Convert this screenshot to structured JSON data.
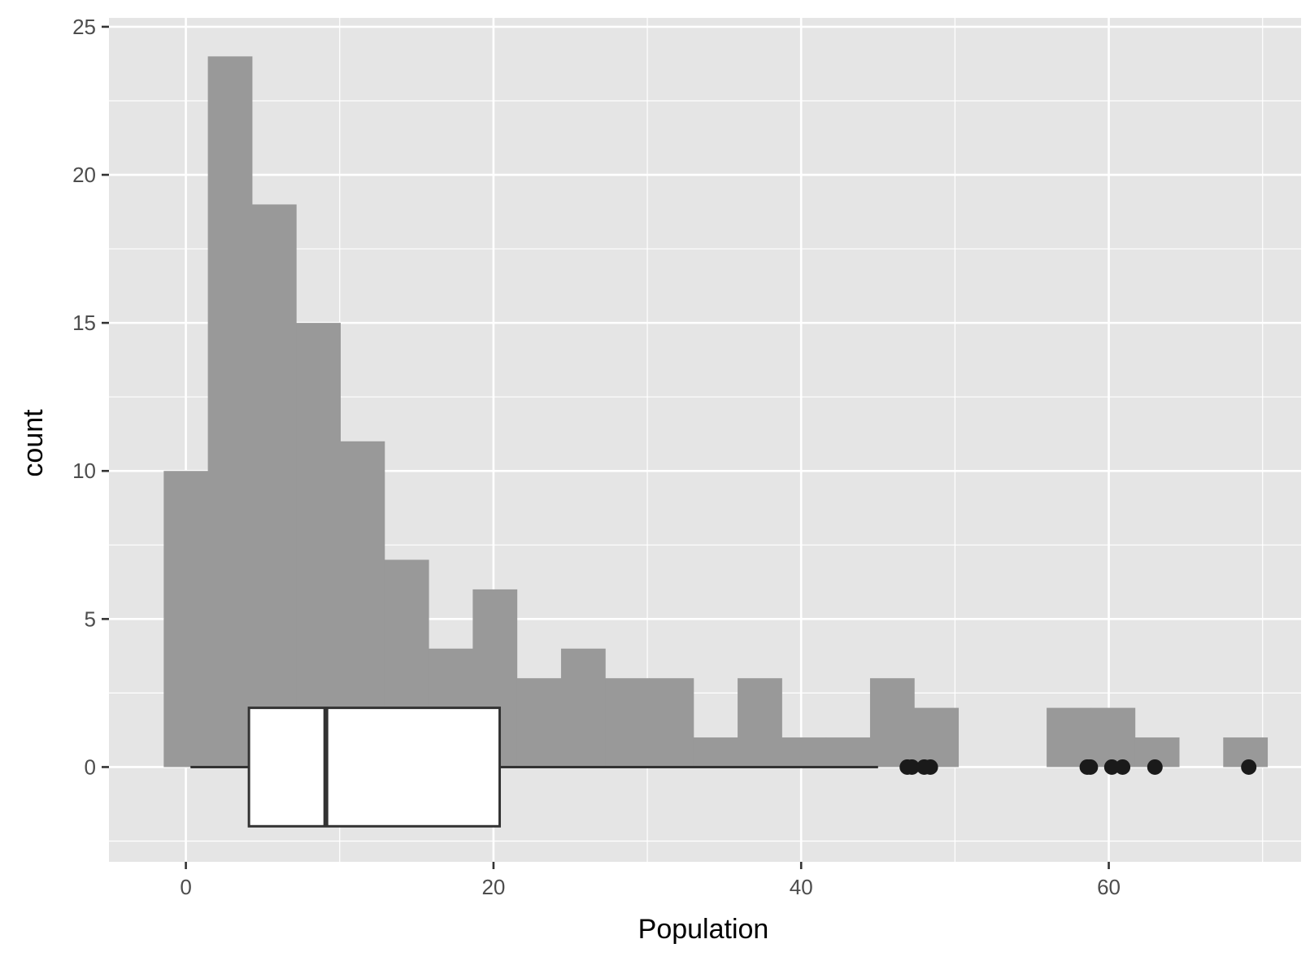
{
  "chart_data": {
    "type": "histogram",
    "title": "",
    "xlabel": "Population",
    "ylabel": "count",
    "xlim": [
      -5,
      72.5
    ],
    "ylim": [
      -3.2,
      25.3
    ],
    "x_ticks": [
      0,
      20,
      40,
      60
    ],
    "x_tick_labels": [
      "0",
      "20",
      "40",
      "60"
    ],
    "x_minor_grid": [
      10,
      30,
      50,
      70
    ],
    "y_ticks": [
      0,
      5,
      10,
      15,
      20,
      25
    ],
    "y_tick_labels": [
      "0",
      "5",
      "10",
      "15",
      "20",
      "25"
    ],
    "y_minor_grid": [
      -2.5,
      2.5,
      7.5,
      12.5,
      17.5,
      22.5
    ],
    "grid": true,
    "histogram": {
      "bin_width": 2.87,
      "bins": [
        {
          "x0": -1.44,
          "x1": 1.43,
          "count": 10
        },
        {
          "x0": 1.43,
          "x1": 4.3,
          "count": 24
        },
        {
          "x0": 4.3,
          "x1": 7.17,
          "count": 19
        },
        {
          "x0": 7.17,
          "x1": 10.04,
          "count": 15
        },
        {
          "x0": 10.04,
          "x1": 12.91,
          "count": 11
        },
        {
          "x0": 12.91,
          "x1": 15.78,
          "count": 7
        },
        {
          "x0": 15.78,
          "x1": 18.65,
          "count": 4
        },
        {
          "x0": 18.65,
          "x1": 21.52,
          "count": 6
        },
        {
          "x0": 21.52,
          "x1": 24.39,
          "count": 3
        },
        {
          "x0": 24.39,
          "x1": 27.26,
          "count": 4
        },
        {
          "x0": 27.26,
          "x1": 30.13,
          "count": 3
        },
        {
          "x0": 30.13,
          "x1": 33.0,
          "count": 3
        },
        {
          "x0": 33.0,
          "x1": 35.87,
          "count": 1
        },
        {
          "x0": 35.87,
          "x1": 38.74,
          "count": 3
        },
        {
          "x0": 38.74,
          "x1": 41.61,
          "count": 1
        },
        {
          "x0": 41.61,
          "x1": 44.48,
          "count": 1
        },
        {
          "x0": 44.48,
          "x1": 47.35,
          "count": 3
        },
        {
          "x0": 47.35,
          "x1": 50.22,
          "count": 2
        },
        {
          "x0": 50.22,
          "x1": 53.09,
          "count": 0
        },
        {
          "x0": 53.09,
          "x1": 55.96,
          "count": 0
        },
        {
          "x0": 55.96,
          "x1": 58.83,
          "count": 2
        },
        {
          "x0": 58.83,
          "x1": 61.7,
          "count": 2
        },
        {
          "x0": 61.7,
          "x1": 64.57,
          "count": 1
        },
        {
          "x0": 64.57,
          "x1": 67.44,
          "count": 0
        },
        {
          "x0": 67.44,
          "x1": 70.31,
          "count": 1
        }
      ],
      "fill": "#999999"
    },
    "boxplot": {
      "y_center": 0,
      "y_low": -2,
      "y_high": 2,
      "whisker_low": 0.3,
      "q1": 4.1,
      "median": 9.1,
      "q3": 20.4,
      "whisker_high": 45.0,
      "outliers": [
        46.9,
        47.2,
        48.0,
        48.4,
        58.6,
        58.8,
        60.2,
        60.9,
        63.0,
        69.1
      ],
      "box_fill": "#ffffff",
      "line_color": "#333333",
      "outlier_color": "#1a1a1a"
    },
    "panel_background": "#e5e5e5",
    "grid_color": "#ffffff"
  }
}
